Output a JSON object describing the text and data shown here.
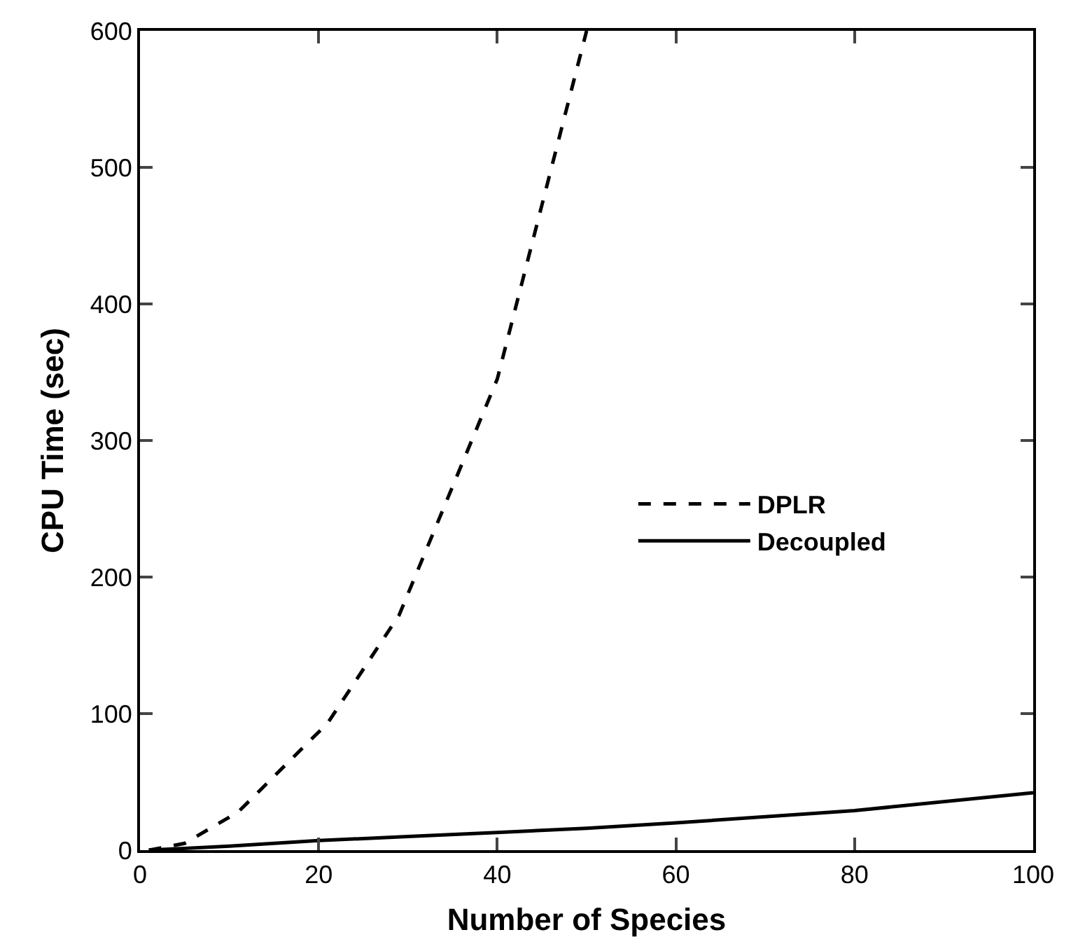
{
  "chart_data": {
    "type": "line",
    "xlabel": "Number of Species",
    "ylabel": "CPU Time (sec)",
    "xlim": [
      0,
      100
    ],
    "xticks": [
      0,
      20,
      40,
      60,
      80,
      100
    ],
    "ylim": [
      0,
      600
    ],
    "yticks": [
      0,
      100,
      200,
      300,
      400,
      500,
      600
    ],
    "grid": false,
    "legend": "right",
    "marker": "none",
    "series": [
      {
        "name": "DPLR",
        "color": "#000000",
        "line_style": "dashed",
        "x": [
          1,
          5,
          11,
          21,
          29,
          40,
          50
        ],
        "values": [
          0,
          5,
          28,
          93,
          172,
          345,
          600
        ]
      },
      {
        "name": "Decoupled",
        "color": "#000000",
        "line_style": "solid",
        "x": [
          1,
          10,
          20,
          30,
          40,
          50,
          60,
          80,
          100
        ],
        "values": [
          0,
          3,
          7,
          10,
          13,
          16,
          20,
          29,
          42
        ]
      }
    ]
  }
}
